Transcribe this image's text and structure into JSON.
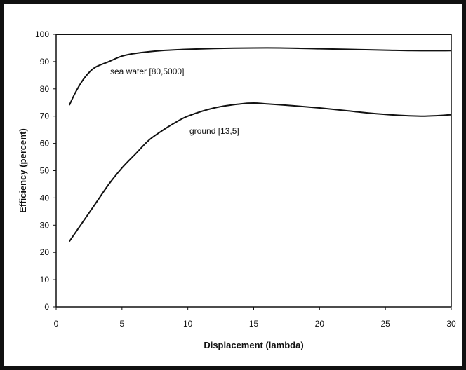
{
  "chart_data": {
    "type": "line",
    "xlabel": "Displacement (lambda)",
    "ylabel": "Efficiency (percent)",
    "xlim": [
      0,
      30
    ],
    "ylim": [
      0,
      100
    ],
    "x_ticks": [
      0,
      5,
      10,
      15,
      20,
      25,
      30
    ],
    "y_ticks": [
      0,
      10,
      20,
      30,
      40,
      50,
      60,
      70,
      80,
      90,
      100
    ],
    "grid": false,
    "line_color": "#111111",
    "series": [
      {
        "name": "sea water [80,5000]",
        "x": [
          1,
          1.5,
          2,
          2.5,
          3,
          4,
          5,
          6,
          8,
          10,
          12,
          15,
          17,
          20,
          22,
          25,
          27,
          30
        ],
        "y": [
          74,
          79,
          83,
          86,
          88,
          90,
          92,
          93,
          94,
          94.5,
          94.8,
          95,
          95,
          94.7,
          94.5,
          94.2,
          94,
          94
        ]
      },
      {
        "name": "ground [13,5]",
        "x": [
          1,
          2,
          3,
          4,
          5,
          6,
          7,
          8,
          9,
          10,
          12,
          14,
          15,
          16,
          18,
          20,
          22,
          24,
          26,
          28,
          30
        ],
        "y": [
          24,
          31,
          38,
          45,
          51,
          56,
          61,
          64.5,
          67.5,
          70,
          73,
          74.5,
          74.8,
          74.5,
          73.8,
          73,
          72,
          71,
          70.3,
          70,
          70.5
        ]
      }
    ]
  }
}
